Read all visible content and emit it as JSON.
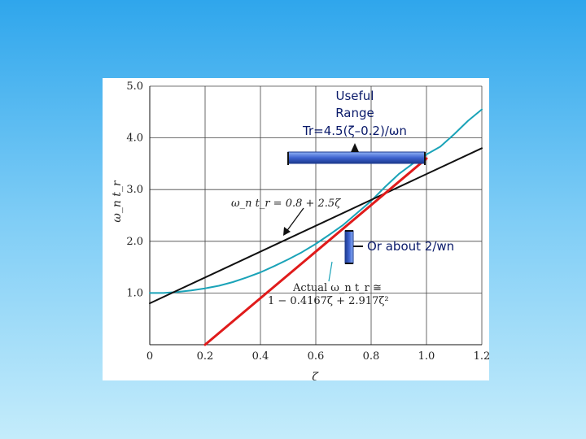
{
  "chart_data": {
    "type": "line",
    "xlabel": "ζ",
    "ylabel": "ω_n t_r",
    "xlim": [
      0,
      1.2
    ],
    "ylim": [
      0,
      5.0
    ],
    "x_ticks": [
      "0",
      "0.2",
      "0.4",
      "0.6",
      "0.8",
      "1.0",
      "1.2"
    ],
    "y_ticks": [
      "1.0",
      "2.0",
      "3.0",
      "4.0",
      "5.0"
    ],
    "grid": true,
    "series": [
      {
        "color": "#1aa3b8",
        "x": [
          0,
          0.05,
          0.1,
          0.15,
          0.2,
          0.25,
          0.3,
          0.35,
          0.4,
          0.45,
          0.5,
          0.55,
          0.6,
          0.65,
          0.7,
          0.75,
          0.8,
          0.85,
          0.9,
          0.95,
          1.0,
          1.05,
          1.1,
          1.15,
          1.2
        ],
        "y": [
          1.0,
          1.0,
          1.02,
          1.05,
          1.09,
          1.14,
          1.21,
          1.3,
          1.4,
          1.52,
          1.65,
          1.79,
          1.95,
          2.13,
          2.32,
          2.55,
          2.78,
          3.05,
          3.3,
          3.5,
          3.68,
          3.83,
          4.07,
          4.33,
          4.55
        ]
      },
      {
        "color": "#111111",
        "x": [
          0,
          1.2
        ],
        "y": [
          0.8,
          3.8
        ]
      },
      {
        "color": "#e01b1b",
        "x": [
          0.2,
          1.0
        ],
        "y": [
          0.0,
          3.6
        ]
      }
    ],
    "annotations": [
      {
        "line1": "ω_n t_r = 0.8 + 2.5ζ"
      },
      {
        "line1": "Actual ω_n t_r ≅",
        "line2": "1 − 0.4167ζ + 2.917ζ²"
      }
    ]
  },
  "callouts": {
    "useful_range_line1": "Useful",
    "useful_range_line2": "Range",
    "useful_range_line3": "Tr=4.5(ζ–0.2)/ωn",
    "about": "Or about 2/wn"
  },
  "colors": {
    "bracket_fill": "#4a72d8",
    "bracket_dark": "#1c3a8e",
    "red_line": "#e01b1b"
  }
}
